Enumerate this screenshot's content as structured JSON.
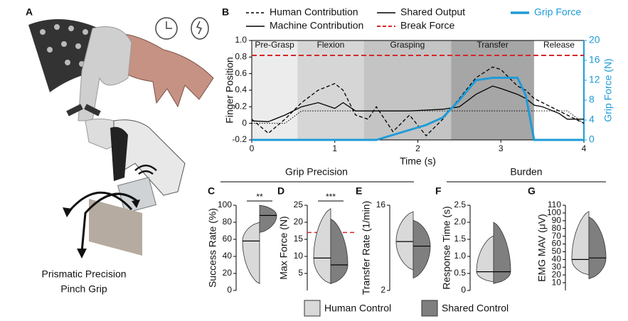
{
  "panel_a": {
    "label": "A",
    "caption_lines": [
      "Prismatic Precision",
      "Pinch Grip"
    ]
  },
  "section_titles": [
    "Grip Precision",
    "Burden"
  ],
  "legend": [
    {
      "name": "Human Control",
      "color": "#d9d9d9"
    },
    {
      "name": "Shared Control",
      "color": "#7f7f7f"
    }
  ],
  "chart_data": [
    {
      "type": "line",
      "panel": "B",
      "xlabel": "Time (s)",
      "ylabel": "Finger Position",
      "y2label": "Grip Force (N)",
      "xlim": [
        0,
        4
      ],
      "xticks": [
        0,
        1,
        2,
        3,
        4
      ],
      "ylim": [
        -0.2,
        1.0
      ],
      "yticks": [
        -0.2,
        0,
        0.2,
        0.4,
        0.6,
        0.8,
        {
          "value": 1,
          "label": "1.0"
        }
      ],
      "y2lim": [
        0,
        20
      ],
      "y2ticks": [
        0,
        4,
        8,
        12,
        16,
        20
      ],
      "y2color": "#1f9bd7",
      "phases": [
        {
          "name": "Pre-Grasp",
          "start": 0,
          "end": 0.55,
          "color": "#ececec"
        },
        {
          "name": "Flexion",
          "start": 0.55,
          "end": 1.35,
          "color": "#d6d6d6"
        },
        {
          "name": "Grasping",
          "start": 1.35,
          "end": 2.4,
          "color": "#c4c4c4"
        },
        {
          "name": "Transfer",
          "start": 2.4,
          "end": 3.4,
          "color": "#a6a6a6"
        },
        {
          "name": "Release",
          "start": 3.4,
          "end": 4,
          "color": "#ffffff"
        }
      ],
      "x": [
        0,
        0.2,
        0.4,
        0.6,
        0.8,
        1.0,
        1.1,
        1.25,
        1.4,
        1.5,
        1.7,
        1.9,
        2.1,
        2.3,
        2.5,
        2.7,
        2.9,
        3.0,
        3.2,
        3.3,
        3.4,
        3.5,
        3.7,
        3.8,
        4.0
      ],
      "series": [
        {
          "name": "Human Contribution",
          "color": "#000000",
          "style": "dashed",
          "values": [
            0.05,
            -0.12,
            0.05,
            0.25,
            0.4,
            0.48,
            0.4,
            0.1,
            0.05,
            0.2,
            -0.1,
            0.1,
            -0.15,
            0.05,
            0.3,
            0.55,
            0.68,
            0.65,
            0.45,
            0.4,
            0.3,
            0.25,
            0.15,
            0.1,
            0.0
          ]
        },
        {
          "name": "Machine Contribution",
          "color": "#000000",
          "style": "dotted",
          "values": [
            0,
            0,
            0,
            0.15,
            0.15,
            0.15,
            0.15,
            0.15,
            0.15,
            0.15,
            0.15,
            0.15,
            0.15,
            0.15,
            0.15,
            0.15,
            0.15,
            0.15,
            0.15,
            0.15,
            0.15,
            0.15,
            0.15,
            0.15,
            0.0
          ]
        },
        {
          "name": "Shared Output",
          "color": "#000000",
          "style": "solid",
          "values": [
            0.03,
            0.02,
            0.1,
            0.2,
            0.25,
            0.18,
            0.25,
            0.15,
            0.15,
            0.15,
            0.15,
            0.15,
            0.16,
            0.17,
            0.2,
            0.35,
            0.45,
            0.42,
            0.35,
            0.3,
            0.22,
            0.2,
            0.12,
            0.05,
            0.05
          ]
        },
        {
          "name": "Grip Force",
          "color": "#1f9bd7",
          "style": "thick",
          "axis": "y2",
          "values": [
            0,
            0,
            0,
            0,
            0,
            0,
            0,
            0,
            0,
            0,
            1,
            2,
            3,
            4.5,
            8,
            12,
            12.5,
            12.5,
            12.5,
            9,
            0,
            0,
            0,
            0,
            0
          ]
        }
      ],
      "reference_lines": [
        {
          "name": "Break Force",
          "value": 17,
          "axis": "y2",
          "color": "#d62728"
        }
      ]
    },
    {
      "type": "violin",
      "panel": "C",
      "ylabel": "Success Rate (%)",
      "ylim": [
        0,
        100
      ],
      "yticks": [
        0,
        20,
        40,
        60,
        80,
        100
      ],
      "groups": [
        {
          "min": 8,
          "median": 58,
          "max": 80
        },
        {
          "min": 68,
          "median": 88,
          "max": 100
        }
      ],
      "significance": "**"
    },
    {
      "type": "violin",
      "panel": "D",
      "ylabel": "Max Force (N)",
      "ylim": [
        0,
        25
      ],
      "yticks": [
        5,
        10,
        15,
        20,
        25
      ],
      "groups": [
        {
          "min": 2,
          "median": 9.5,
          "max": 24
        },
        {
          "min": 2,
          "median": 7.5,
          "max": 21
        }
      ],
      "significance": "***",
      "reference_line": {
        "value": 17,
        "color": "#d62728"
      }
    },
    {
      "type": "violin",
      "panel": "E",
      "ylabel": "Transfer Rate (1/min)",
      "log_scale": true,
      "ylim": [
        2,
        16
      ],
      "yticks": [
        2,
        16
      ],
      "groups": [
        {
          "min": 3.3,
          "median": 6.6,
          "max": 13.7
        },
        {
          "min": 2.7,
          "median": 5.9,
          "max": 11.1
        }
      ]
    },
    {
      "type": "violin",
      "panel": "F",
      "ylabel": "Response Time (s)",
      "ylim": [
        0,
        2.5
      ],
      "yticks": [
        0,
        0.5,
        {
          "value": 1,
          "label": "1.0"
        },
        1.5,
        {
          "value": 2,
          "label": "2.0"
        },
        2.5
      ],
      "groups": [
        {
          "min": 0.25,
          "median": 0.55,
          "max": 1.6
        },
        {
          "min": 0.2,
          "median": 0.55,
          "max": 2.0
        }
      ]
    },
    {
      "type": "violin",
      "panel": "G",
      "ylabel": "EMG MAV (μV)",
      "ylim": [
        0,
        110
      ],
      "yticks": [
        10,
        20,
        30,
        40,
        50,
        60,
        70,
        80,
        90,
        100,
        110
      ],
      "groups": [
        {
          "min": 20,
          "median": 40,
          "max": 102
        },
        {
          "min": 15,
          "median": 42,
          "max": 95
        }
      ]
    }
  ]
}
